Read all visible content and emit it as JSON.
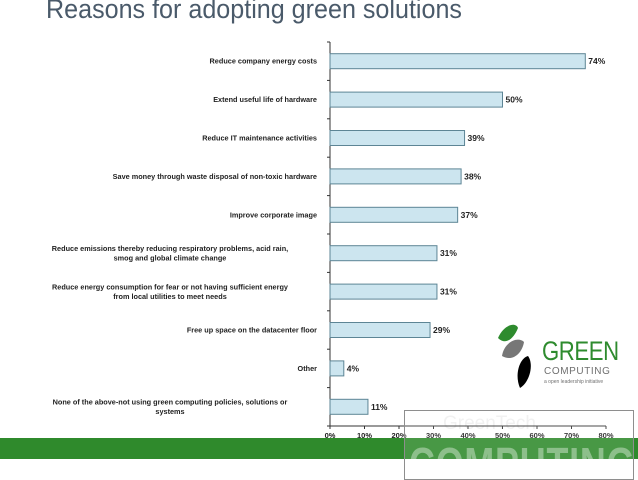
{
  "slide": {
    "title": "Reasons for adopting green solutions"
  },
  "chart_data": {
    "type": "bar",
    "orientation": "horizontal",
    "categories": [
      [
        "Reduce company energy costs"
      ],
      [
        "Extend useful life of hardware"
      ],
      [
        "Reduce IT maintenance activities"
      ],
      [
        "Save money through waste disposal of non-toxic hardware"
      ],
      [
        "Improve corporate image"
      ],
      [
        "Reduce emissions thereby reducing respiratory problems, acid rain,",
        "smog and global climate change"
      ],
      [
        "Reduce energy consumption for fear or not having sufficient energy",
        "from local utilities to meet needs"
      ],
      [
        "Free up space on the datacenter floor"
      ],
      [
        "Other"
      ],
      [
        "None of the above-not using green computing policies, solutions or",
        "systems"
      ]
    ],
    "values": [
      74,
      50,
      39,
      38,
      37,
      31,
      31,
      29,
      4,
      11
    ],
    "value_labels": [
      "74%",
      "50%",
      "39%",
      "38%",
      "37%",
      "31%",
      "31%",
      "29%",
      "4%",
      "11%"
    ],
    "x_ticks": [
      "0%",
      "10%",
      "20%",
      "30%",
      "40%",
      "50%",
      "60%",
      "70%",
      "80%"
    ],
    "xlim": [
      0,
      80
    ],
    "bar_color": "#cce5ef",
    "bar_edge_color": "#5d8595",
    "grid": false,
    "legend": "none"
  },
  "footer": {
    "band_color": "#2f8a2c"
  },
  "logo": {
    "brand": "GREEN",
    "subbrand": "COMPUTING",
    "tagline": "a open leadership initiative",
    "leaf_colors": [
      "#2e8b2e",
      "#777777",
      "#000000"
    ]
  },
  "watermark": {
    "top_text": "GreenTech",
    "text": "COMPUTING"
  }
}
